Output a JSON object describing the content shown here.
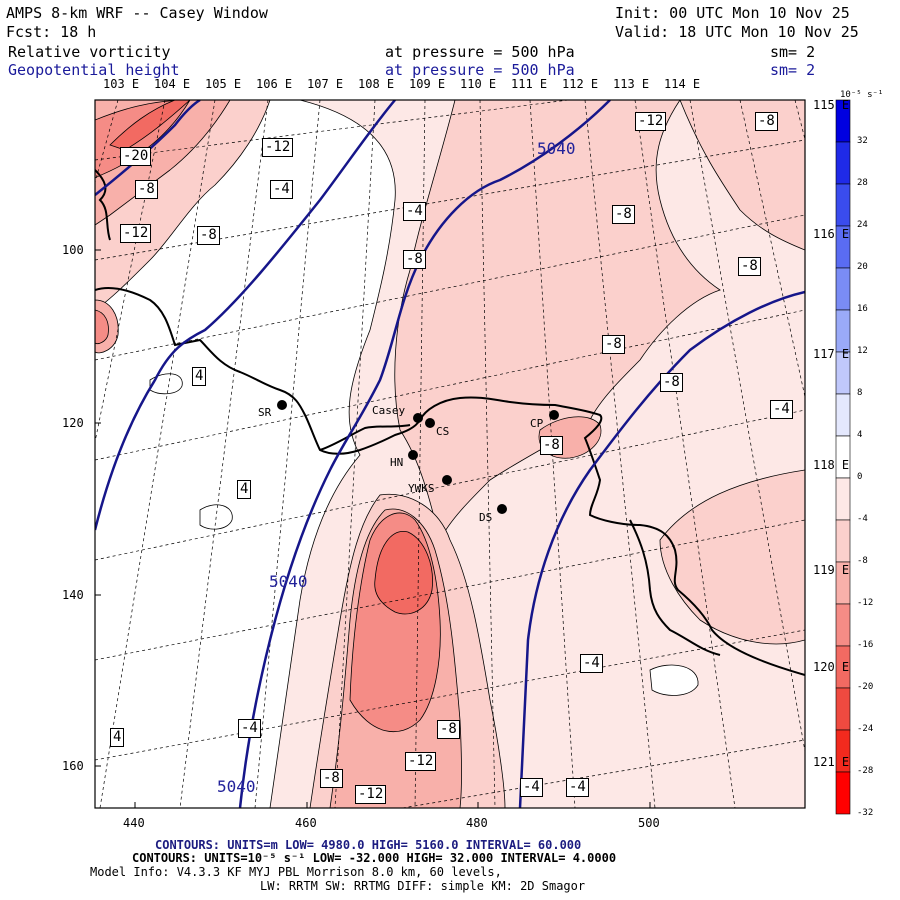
{
  "header": {
    "model_line": "AMPS 8-km WRF -- Casey Window",
    "init_line": "Init: 00 UTC Mon 10 Nov 25",
    "fcst_line": "Fcst:   18 h",
    "valid_line": "Valid: 18 UTC Mon 10 Nov 25",
    "field1_name": "Relative vorticity",
    "field1_level": "at pressure =  500 hPa",
    "field1_sm": "sm= 2",
    "field2_name": "Geopotential height",
    "field2_level": "at pressure =  500 hPa",
    "field2_sm": "sm= 2"
  },
  "axes": {
    "top_lon_labels": [
      "103 E",
      "104 E",
      "105 E",
      "106 E",
      "107 E",
      "108 E",
      "109 E",
      "110 E",
      "111 E",
      "112 E",
      "113 E",
      "114 E"
    ],
    "right_lat_labels": [
      "115 E",
      "116 E",
      "117 E",
      "118 E",
      "119 E",
      "120 E",
      "121 E"
    ],
    "x_ticks": [
      "440",
      "460",
      "480",
      "500"
    ],
    "y_ticks": [
      "100",
      "120",
      "140",
      "160"
    ]
  },
  "colorbar": {
    "unit_label": "10⁻⁵ s⁻¹",
    "labels": [
      "32",
      "28",
      "24",
      "20",
      "16",
      "12",
      "8",
      "4",
      "0",
      "-4",
      "-8",
      "-12",
      "-16",
      "-20",
      "-24",
      "-28",
      "-32"
    ],
    "colors": [
      "#0000e0",
      "#1f2ae8",
      "#3a4cee",
      "#5a6cf2",
      "#7a8cf5",
      "#9aaaf8",
      "#c0c8fb",
      "#e4e8fd",
      "#ffffff",
      "#fde8e6",
      "#fbd0cc",
      "#f8b0aa",
      "#f58c86",
      "#f26a62",
      "#ef4a40",
      "#f22a1e",
      "#ff0000"
    ]
  },
  "contour_labels": {
    "vorticity": [
      "-20",
      "-8",
      "-12",
      "-12",
      "-8",
      "-4",
      "-4",
      "-8",
      "-8",
      "-12",
      "-8",
      "-8",
      "-8",
      "-4",
      "-8",
      "-8",
      "4",
      "4",
      "-4",
      "-8",
      "-12",
      "-8",
      "-12",
      "-4",
      "-4",
      "4",
      "-4"
    ],
    "height": [
      "5040",
      "5040",
      "5040"
    ]
  },
  "stations": [
    "SR",
    "Casey",
    "CS",
    "CP",
    "HN",
    "YWKS",
    "DS"
  ],
  "footer": {
    "line1": "CONTOURS: UNITS=m  LOW= 4980.0    HIGH= 5160.0    INTERVAL= 60.000",
    "line2": "CONTOURS: UNITS=10⁻⁵ s⁻¹  LOW= -32.000    HIGH= 32.000    INTERVAL= 4.0000",
    "line3": "Model Info: V4.3.3   KF     MYJ PBL  Morrison          8.0 km,  60 levels,",
    "line4": "LW: RRTM SW: RRTMG   DIFF: simple KM: 2D Smagor"
  }
}
